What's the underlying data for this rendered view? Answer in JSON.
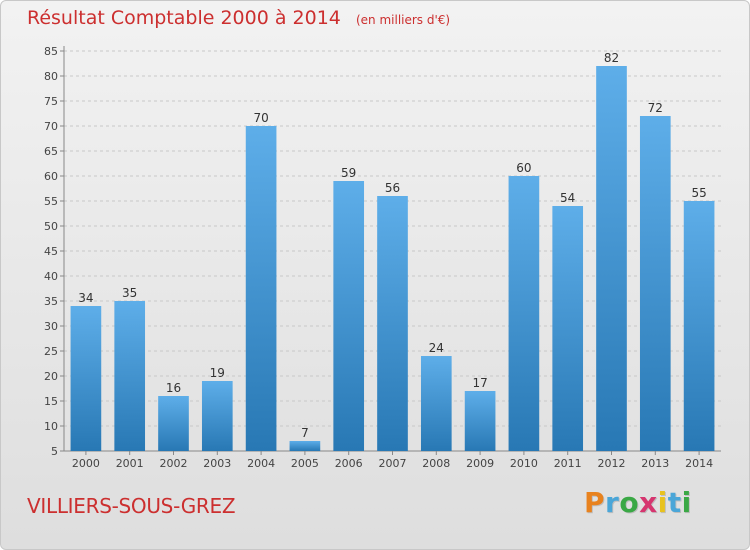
{
  "header": {
    "title": "Résultat Comptable 2000 à 2014",
    "unit": "(en milliers d'€)"
  },
  "location": "VILLIERS-SOUS-GREZ",
  "brand": {
    "text": "Proxiti",
    "letter_colors": [
      "#e8821e",
      "#4aa6d8",
      "#3aa845",
      "#d6356f",
      "#e8c21e",
      "#4aa6d8",
      "#3aa845"
    ]
  },
  "colors": {
    "accent": "#cc2f2f",
    "bar_top": "#5eaee9",
    "bar_bottom": "#2878b4"
  },
  "chart_data": {
    "type": "bar",
    "title": "Résultat Comptable 2000 à 2014",
    "subtitle": "(en milliers d'€)",
    "xlabel": "",
    "ylabel": "",
    "categories": [
      "2000",
      "2001",
      "2002",
      "2003",
      "2004",
      "2005",
      "2006",
      "2007",
      "2008",
      "2009",
      "2010",
      "2011",
      "2012",
      "2013",
      "2014"
    ],
    "values": [
      34,
      35,
      16,
      19,
      70,
      7,
      59,
      56,
      24,
      17,
      60,
      54,
      82,
      72,
      55
    ],
    "ylim": [
      5,
      85
    ],
    "yticks": [
      5,
      10,
      15,
      20,
      25,
      30,
      35,
      40,
      45,
      50,
      55,
      60,
      65,
      70,
      75,
      80,
      85
    ],
    "grid": true,
    "data_labels": true
  }
}
